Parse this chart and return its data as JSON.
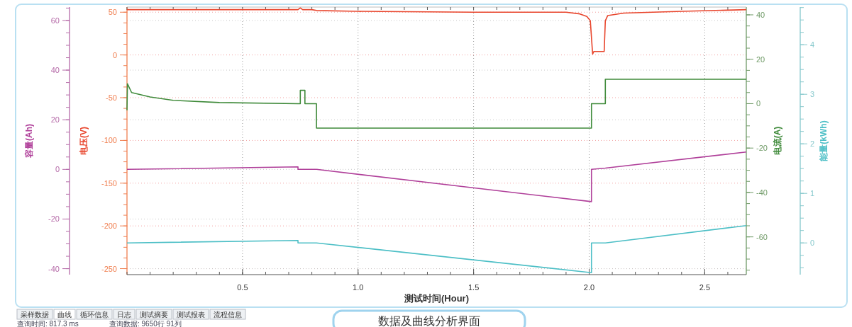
{
  "chart_data": [
    {
      "type": "line",
      "xlabel": "测试时间(Hour)",
      "ylabel": "电压(V)",
      "y2label": "电流(A)",
      "y3label": "容量(Ah)",
      "xlim": [
        0,
        2.68
      ],
      "xticks": [
        0.5,
        {
          "value": 1,
          "label": "1.0"
        },
        1.5,
        {
          "value": 2,
          "label": "2.0"
        },
        2.5
      ],
      "ylim": [
        -257,
        56
      ],
      "yticks": [
        -250,
        -200,
        -150,
        -100,
        -50,
        0,
        50
      ],
      "y2lim": [
        -77,
        43.5
      ],
      "y2ticks": [
        -60,
        -40,
        -20,
        0,
        20,
        40
      ],
      "y3lim": [
        -42.4,
        65.4
      ],
      "y3ticks": [
        -40,
        -20,
        0,
        20,
        40,
        60
      ],
      "grid": true,
      "series": [
        {
          "axis": "y",
          "color": "#e8452c",
          "x": [
            0,
            0.74,
            0.75,
            0.76,
            0.8,
            0.82,
            1.0,
            1.5,
            1.9,
            1.96,
            1.99,
            2.005,
            2.015,
            2.02,
            2.065,
            2.07,
            2.08,
            2.15,
            2.4,
            2.68
          ],
          "values": [
            53,
            53,
            55,
            53,
            53,
            52,
            51,
            50,
            50,
            48,
            45,
            40,
            1,
            4,
            4,
            40,
            46,
            49,
            51,
            53
          ]
        },
        {
          "axis": "y2",
          "color": "#3f8a3a",
          "x": [
            0,
            0.002,
            0.02,
            0.1,
            0.2,
            0.4,
            0.74,
            0.75,
            0.75,
            0.77,
            0.77,
            0.82,
            0.82,
            2.01,
            2.01,
            2.07,
            2.07,
            2.68
          ],
          "values": [
            -3,
            9,
            5,
            3,
            1.5,
            0.5,
            0,
            0,
            6,
            6,
            0,
            0,
            -11,
            -11,
            0,
            0,
            11,
            11
          ]
        },
        {
          "axis": "y3",
          "color": "#b0409a",
          "x": [
            0,
            0.74,
            0.74,
            0.82,
            2.01,
            2.01,
            2.07,
            2.68
          ],
          "values": [
            0,
            1,
            0,
            0,
            -13,
            0,
            0.5,
            7
          ]
        }
      ],
      "annotations": [
        "采样数据",
        "曲线",
        "循环信息",
        "日志",
        "测试摘要",
        "测试报表",
        "流程信息",
        "查询时间: 817.3 ms",
        "查询数据: 9650行 91列",
        "数据及曲线分析界面"
      ]
    },
    {
      "type": "line",
      "ylabel": "能量(kWh)",
      "xlim": [
        0,
        2.68
      ],
      "ylim": [
        -0.64,
        4.76
      ],
      "yticks": [
        0,
        1,
        2,
        3,
        4
      ],
      "tick_labels": "y",
      "series": [
        {
          "color": "#4dbfc6",
          "x": [
            0,
            0.74,
            0.74,
            0.82,
            2.01,
            2.01,
            2.07,
            2.68
          ],
          "values": [
            0,
            0.05,
            0,
            0,
            -0.6,
            0,
            0,
            0.35
          ]
        }
      ]
    }
  ]
}
